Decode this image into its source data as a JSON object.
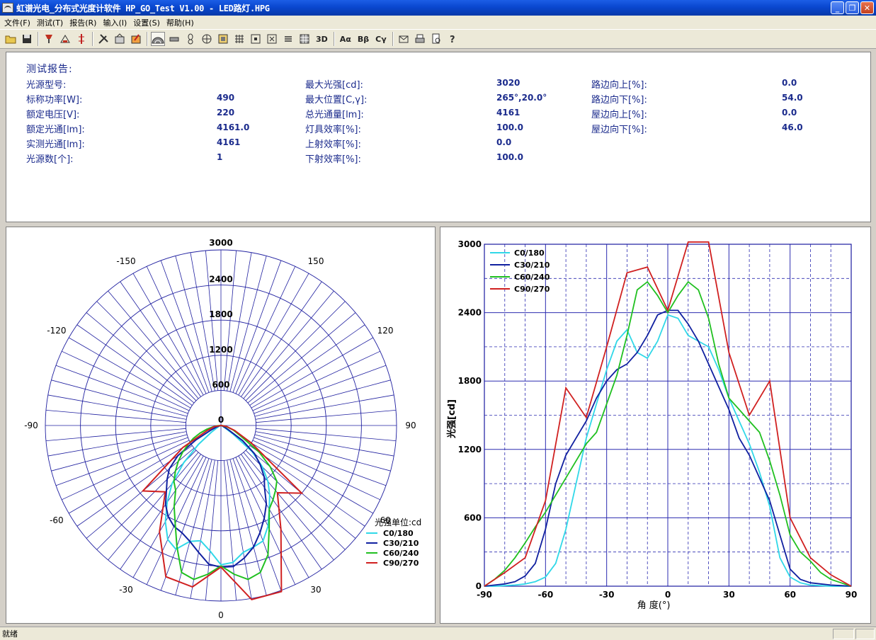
{
  "window": {
    "title": "虹谱光电_分布式光度计软件 HP_GO_Test V1.00 - LED路灯.HPG",
    "min_label": "_",
    "max_label": "❐",
    "close_label": "✕"
  },
  "menu": {
    "items": [
      "文件(F)",
      "测试(T)",
      "报告(R)",
      "输入(I)",
      "设置(S)",
      "帮助(H)"
    ]
  },
  "toolbar": {
    "buttons": [
      "open-folder-icon",
      "save-icon",
      "lamp-icon",
      "lamp-measure-icon",
      "axis-icon",
      "tools-icon",
      "calc-icon",
      "edit-icon",
      "polar-view-icon",
      "linear-view-icon",
      "bulb-icon",
      "globe-icon",
      "grid-a-icon",
      "grid-b-icon",
      "grid-c-icon",
      "grid-d-icon",
      "list-icon",
      "table-icon"
    ],
    "label_3d": "3D",
    "label_aa": "Aα",
    "label_bb": "Bβ",
    "label_cg": "Cγ",
    "end_buttons": [
      "export-icon",
      "print-icon",
      "preview-icon",
      "help-icon"
    ]
  },
  "report": {
    "title": "测试报告:",
    "col1": [
      {
        "label": "光源型号:",
        "value": ""
      },
      {
        "label": "标称功率[W]:",
        "value": "490"
      },
      {
        "label": "额定电压[V]:",
        "value": "220"
      },
      {
        "label": "额定光通[lm]:",
        "value": "4161.0"
      },
      {
        "label": "实测光通[lm]:",
        "value": "4161"
      },
      {
        "label": "光源数[个]:",
        "value": "1"
      }
    ],
    "col2": [
      {
        "label": "最大光强[cd]:",
        "value": "3020"
      },
      {
        "label": "最大位置[C,γ]:",
        "value": "265°,20.0°"
      },
      {
        "label": "总光通量[lm]:",
        "value": "4161"
      },
      {
        "label": "灯具效率[%]:",
        "value": "100.0"
      },
      {
        "label": "上射效率[%]:",
        "value": "0.0"
      },
      {
        "label": "下射效率[%]:",
        "value": "100.0"
      }
    ],
    "col3": [
      {
        "label": "路边向上[%]:",
        "value": "0.0"
      },
      {
        "label": "路边向下[%]:",
        "value": "54.0"
      },
      {
        "label": "屋边向上[%]:",
        "value": "0.0"
      },
      {
        "label": "屋边向下[%]:",
        "value": "46.0"
      }
    ]
  },
  "chart_data": [
    {
      "type": "polar",
      "radial_ticks": [
        "0",
        "600",
        "1200",
        "1800",
        "2400",
        "3000"
      ],
      "rmax": 3000,
      "angle_labels": [
        "0",
        "30",
        "60",
        "90",
        "120",
        "150",
        "-150",
        "-120",
        "-90",
        "-60",
        "-30"
      ],
      "legend_title": "光强单位:cd",
      "legend_position": "bottom-right",
      "series": [
        {
          "name": "C0/180",
          "color": "#30d8e8",
          "gamma": [
            -90,
            -85,
            -80,
            -75,
            -70,
            -65,
            -60,
            -55,
            -50,
            -45,
            -40,
            -35,
            -30,
            -25,
            -20,
            -15,
            -10,
            -5,
            0,
            5,
            10,
            15,
            20,
            25,
            30,
            35,
            40,
            45,
            50,
            55,
            60,
            65,
            70,
            75,
            80,
            85,
            90
          ],
          "values": [
            0,
            0,
            5,
            10,
            20,
            40,
            80,
            200,
            500,
            900,
            1300,
            1600,
            1900,
            2150,
            2250,
            2050,
            2000,
            2150,
            2380,
            2350,
            2200,
            2150,
            2100,
            1900,
            1650,
            1450,
            1250,
            1000,
            700,
            250,
            80,
            30,
            10,
            5,
            0,
            0,
            0
          ]
        },
        {
          "name": "C30/210",
          "color": "#1020a0",
          "gamma": [
            -90,
            -85,
            -80,
            -75,
            -70,
            -65,
            -60,
            -55,
            -50,
            -45,
            -40,
            -35,
            -30,
            -25,
            -20,
            -15,
            -10,
            -5,
            0,
            5,
            10,
            15,
            20,
            25,
            30,
            35,
            40,
            45,
            50,
            55,
            60,
            65,
            70,
            75,
            80,
            85,
            90
          ],
          "values": [
            0,
            10,
            20,
            40,
            90,
            200,
            500,
            900,
            1150,
            1300,
            1450,
            1650,
            1800,
            1900,
            1950,
            2050,
            2200,
            2380,
            2420,
            2420,
            2300,
            2150,
            1950,
            1750,
            1550,
            1300,
            1150,
            950,
            750,
            450,
            150,
            60,
            30,
            20,
            10,
            5,
            0
          ]
        },
        {
          "name": "C60/240",
          "color": "#20c020",
          "gamma": [
            -90,
            -85,
            -80,
            -75,
            -70,
            -65,
            -60,
            -55,
            -50,
            -45,
            -40,
            -35,
            -30,
            -25,
            -20,
            -15,
            -10,
            -5,
            0,
            5,
            10,
            15,
            20,
            25,
            30,
            35,
            40,
            45,
            50,
            55,
            60,
            65,
            70,
            75,
            80,
            85,
            90
          ],
          "values": [
            0,
            60,
            140,
            250,
            380,
            520,
            650,
            800,
            950,
            1100,
            1250,
            1350,
            1600,
            1850,
            2200,
            2600,
            2670,
            2550,
            2400,
            2550,
            2670,
            2600,
            2350,
            1950,
            1650,
            1550,
            1450,
            1350,
            1100,
            800,
            450,
            300,
            220,
            120,
            60,
            30,
            0
          ]
        },
        {
          "name": "C90/270",
          "color": "#d02020",
          "gamma": [
            -90,
            -80,
            -70,
            -60,
            -50,
            -40,
            -30,
            -20,
            -10,
            0,
            10,
            20,
            30,
            40,
            50,
            60,
            70,
            80,
            90
          ],
          "values": [
            0,
            120,
            250,
            750,
            1740,
            1480,
            2100,
            2750,
            2800,
            2420,
            3020,
            3020,
            2050,
            1500,
            1800,
            600,
            250,
            100,
            0
          ]
        }
      ]
    },
    {
      "type": "line",
      "x_range": [
        -90,
        90
      ],
      "y_range": [
        0,
        3000
      ],
      "x_ticks": [
        "-90",
        "-60",
        "-30",
        "0",
        "30",
        "60",
        "90"
      ],
      "y_ticks": [
        "0",
        "600",
        "1200",
        "1800",
        "2400",
        "3000"
      ],
      "xlabel": "角 度(°)",
      "ylabel": "光强[cd]",
      "legend_position": "top-left",
      "grid": true
    }
  ],
  "status": {
    "text": "就绪"
  }
}
